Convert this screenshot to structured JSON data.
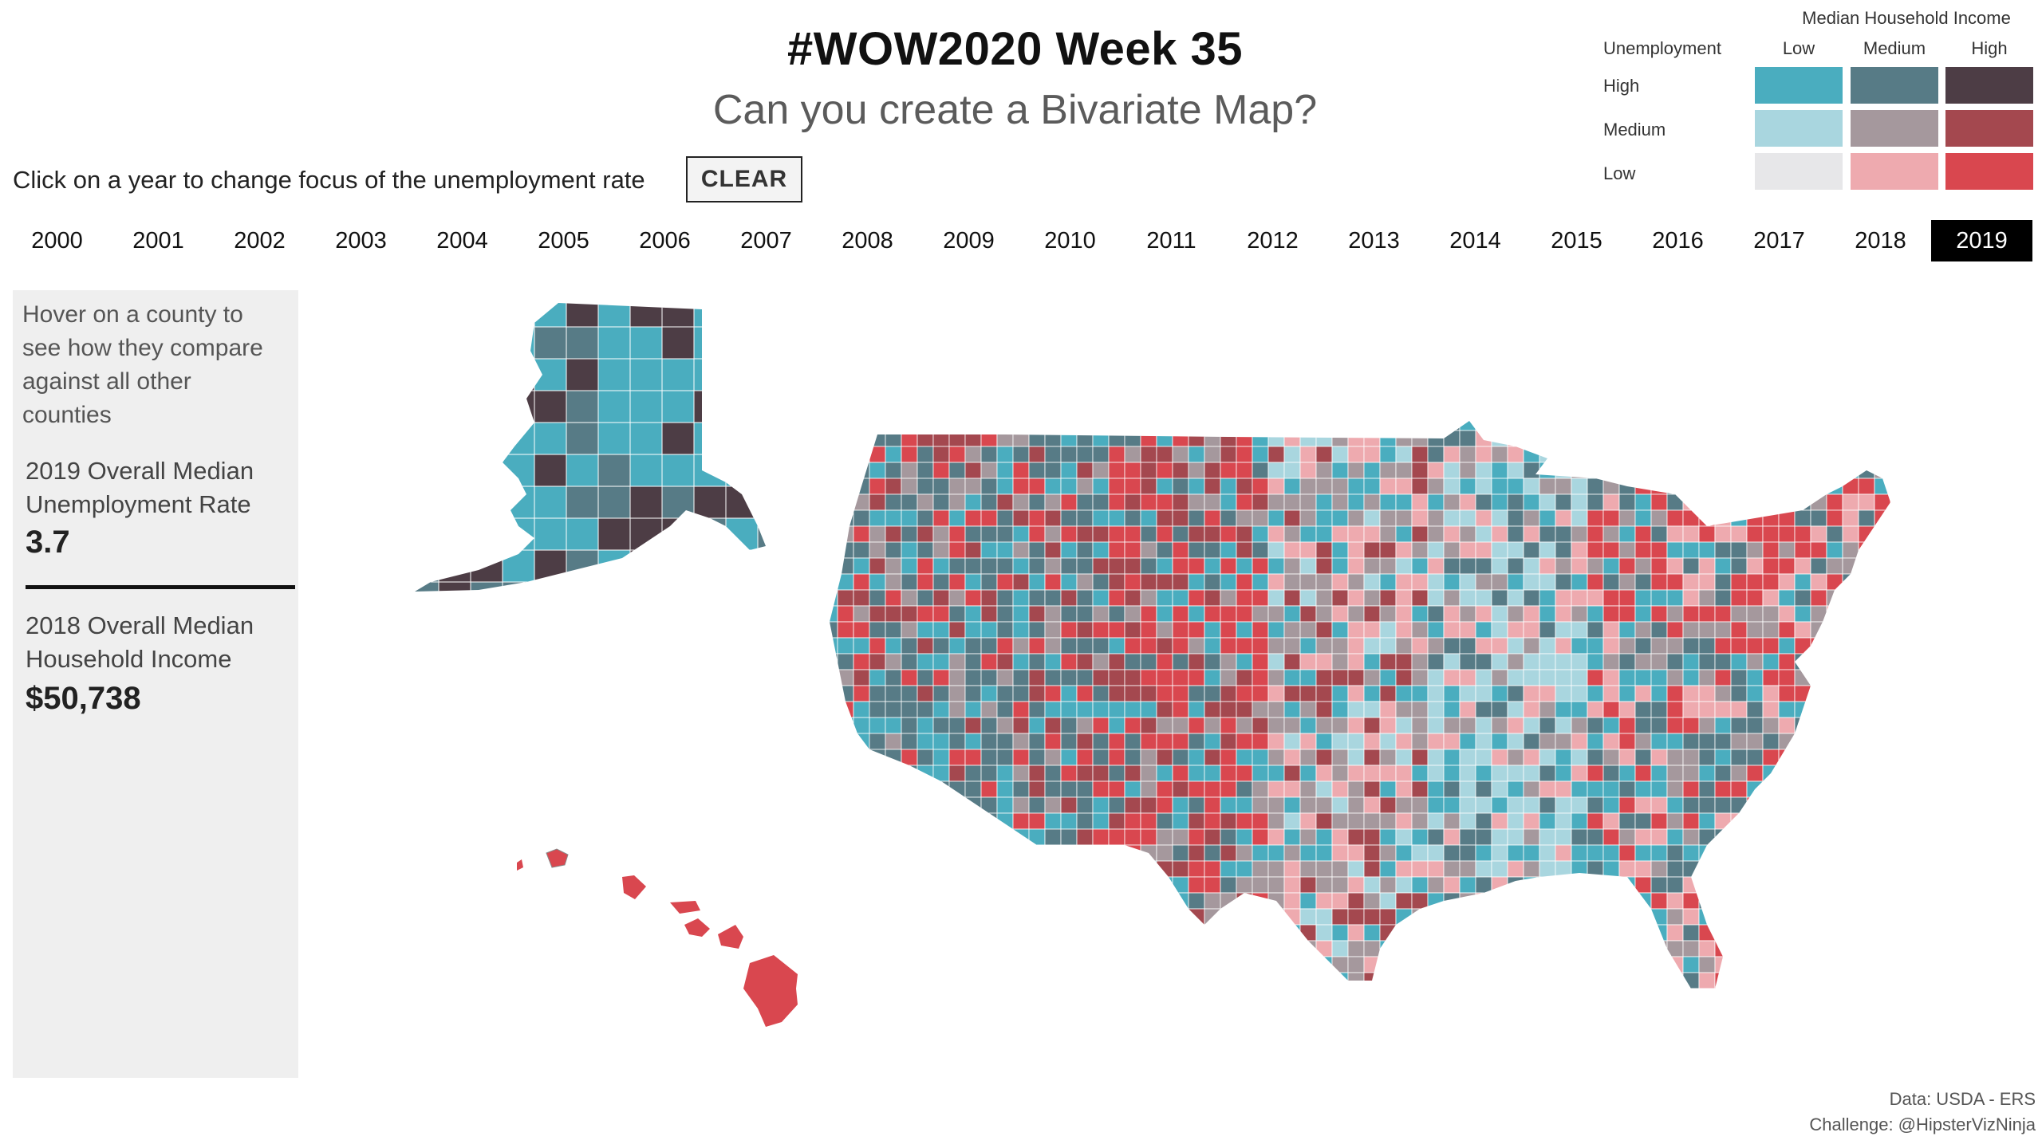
{
  "header": {
    "title": "#WOW2020 Week 35",
    "subtitle": "Can you create a Bivariate Map?"
  },
  "controls": {
    "instruction": "Click on a year to change focus of the unemployment rate",
    "clear_label": "CLEAR",
    "years": [
      "2000",
      "2001",
      "2002",
      "2003",
      "2004",
      "2005",
      "2006",
      "2007",
      "2008",
      "2009",
      "2010",
      "2011",
      "2012",
      "2013",
      "2014",
      "2015",
      "2016",
      "2017",
      "2018",
      "2019"
    ],
    "selected_year": "2019"
  },
  "legend": {
    "title": "Median Household Income",
    "row_axis_title": "Unemployment",
    "columns": [
      "Low",
      "Medium",
      "High"
    ],
    "rows": [
      "High",
      "Medium",
      "Low"
    ],
    "colors": [
      [
        "#4aadbf",
        "#577b86",
        "#4d3d45"
      ],
      [
        "#a9d6df",
        "#a5989d",
        "#a4484f"
      ],
      [
        "#e7e7e9",
        "#eeaaaf",
        "#d9474f"
      ]
    ]
  },
  "panel": {
    "hover_text": "Hover on a county to see how they compare against all other counties",
    "unemployment_label": "2019 Overall Median Unemployment Rate",
    "unemployment_value": "3.7",
    "income_label": "2018 Overall Median Household Income",
    "income_value": "$50,738"
  },
  "footer": {
    "source": "Data: USDA - ERS",
    "credit": "Challenge: @HipsterVizNinja"
  }
}
